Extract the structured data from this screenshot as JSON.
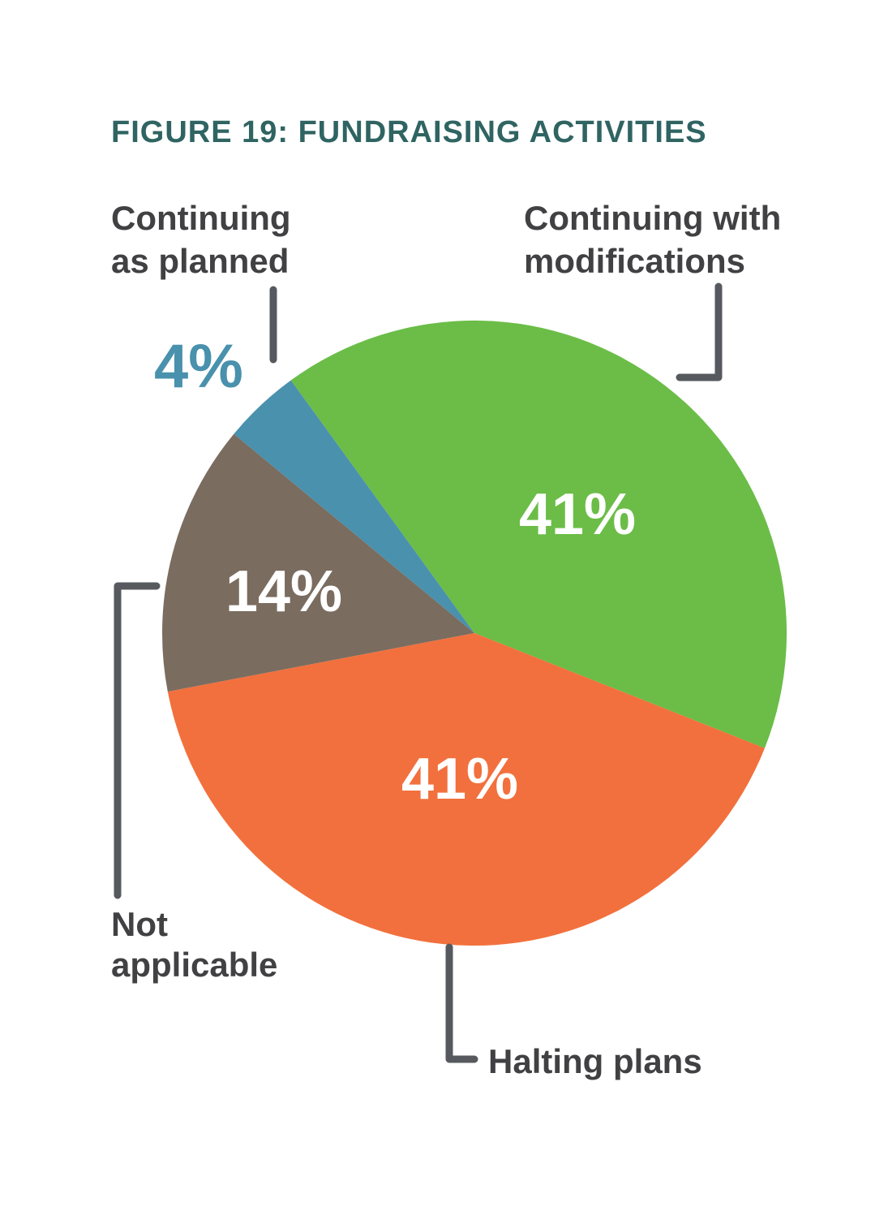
{
  "figure": {
    "title": "FIGURE 19: FUNDRAISING ACTIVITIES"
  },
  "colors": {
    "title_text": "#2F6462",
    "label_text": "#414042",
    "leader_line": "#565A5F",
    "pct_text_inside": "#FFFFFF",
    "pct_text_outside": "#4991AD",
    "background": "#FFFFFF",
    "slice_green": "#6BBD47",
    "slice_orange": "#F2703D",
    "slice_brown": "#7A6C5F",
    "slice_blue": "#4991AD"
  },
  "chart_data": {
    "type": "pie",
    "title": "FIGURE 19: FUNDRAISING ACTIVITIES",
    "direction": "clockwise",
    "start_angle_deg": -36,
    "legend_position": "callout-labels-around-pie",
    "slices": [
      {
        "id": "continuing-with-modifications",
        "label": "Continuing with modifications",
        "value": 41,
        "pct_label": "41%",
        "color": "#6BBD47",
        "pct_label_position": "inside"
      },
      {
        "id": "halting-plans",
        "label": "Halting plans",
        "value": 41,
        "pct_label": "41%",
        "color": "#F2703D",
        "pct_label_position": "inside"
      },
      {
        "id": "not-applicable",
        "label": "Not applicable",
        "value": 14,
        "pct_label": "14%",
        "color": "#7A6C5F",
        "pct_label_position": "inside"
      },
      {
        "id": "continuing-as-planned",
        "label": "Continuing as planned",
        "value": 4,
        "pct_label": "4%",
        "color": "#4991AD",
        "pct_label_position": "outside"
      }
    ]
  },
  "callouts": {
    "continuing_as_planned": "Continuing\nas planned",
    "continuing_with_modifications": "Continuing with\nmodifications",
    "not_applicable": "Not\napplicable",
    "halting_plans": "Halting plans"
  }
}
